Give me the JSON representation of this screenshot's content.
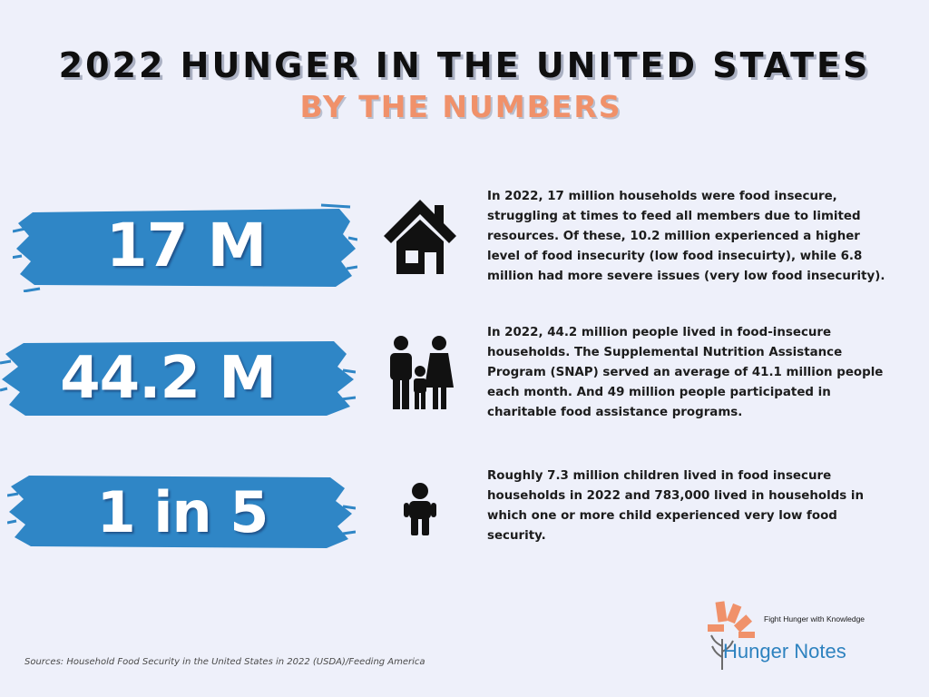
{
  "header": {
    "title": "2022 HUNGER IN THE UNITED STATES",
    "subtitle": "BY THE NUMBERS"
  },
  "stats": [
    {
      "value": "17 M",
      "icon": "house-icon",
      "description": "In 2022, 17 million households were food insecure, struggling at times to feed all members due to limited resources. Of these, 10.2 million experienced a higher level of food insecurity (low food insecuirty), while 6.8 million had more severe issues (very low food insecurity)."
    },
    {
      "value": "44.2 M",
      "icon": "family-icon",
      "description": "In 2022, 44.2 million people lived in food-insecure households. The Supplemental Nutrition Assistance Program (SNAP) served an average of 41.1 million people each month. And 49 million people participated in charitable food assistance programs."
    },
    {
      "value": "1 in 5",
      "icon": "child-icon",
      "description": "Roughly 7.3 million children lived in food insecure households in 2022 and 783,000 lived in households in which one or more child experienced very low food security."
    }
  ],
  "footer": {
    "sources": "Sources: Household Food Security in the United States in 2022 (USDA)/Feeding America",
    "tagline": "Fight Hunger with Knowledge",
    "brand": "Hunger Notes"
  },
  "colors": {
    "background": "#eef0fa",
    "stroke_blue": "#2f86c6",
    "accent_orange": "#f0916a",
    "brand_blue": "#2d82bf"
  }
}
